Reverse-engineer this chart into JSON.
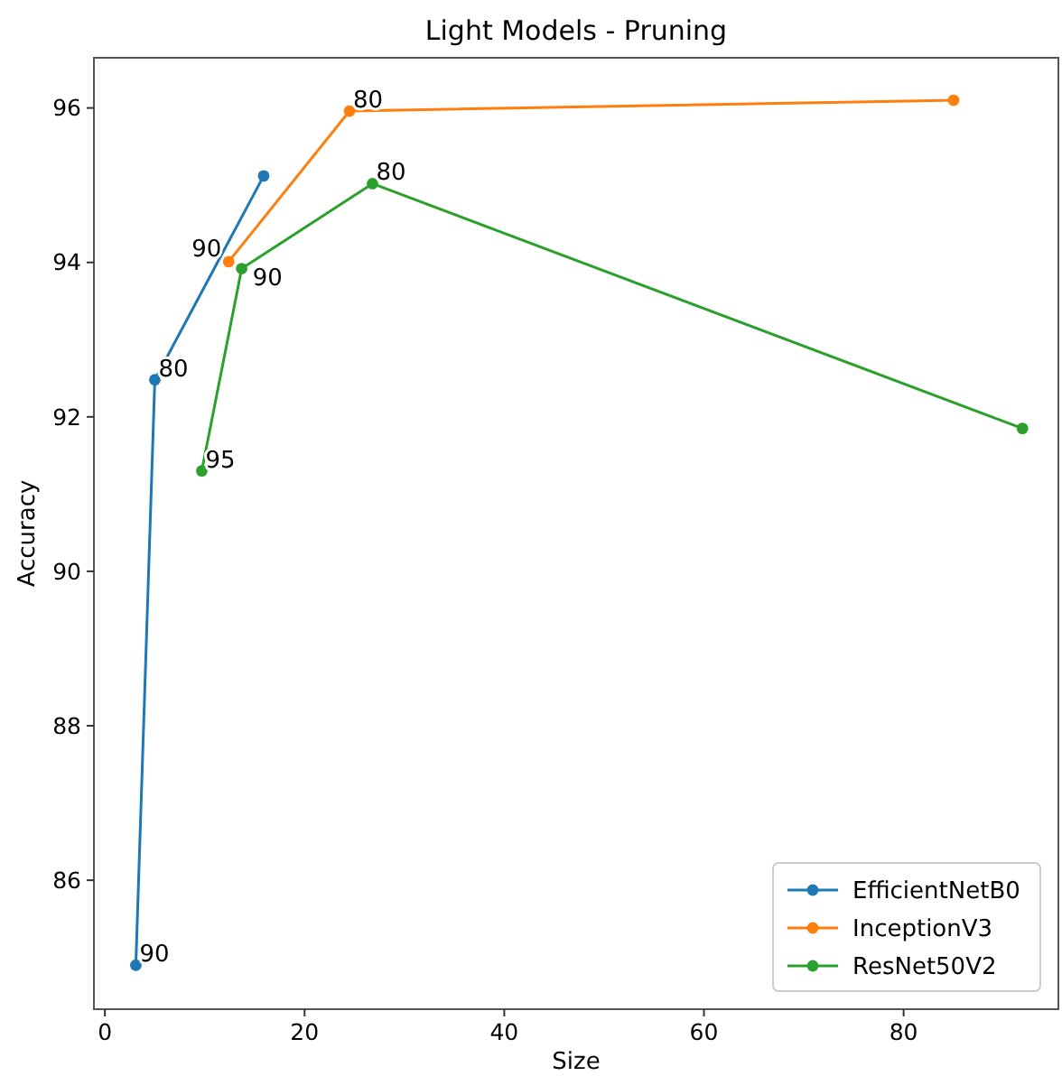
{
  "chart_data": {
    "type": "line",
    "title": "Light Models - Pruning",
    "xlabel": "Size",
    "ylabel": "Accuracy",
    "xlim": [
      -1.1,
      95.5
    ],
    "ylim": [
      84.33,
      96.65
    ],
    "xticks": [
      0,
      20,
      40,
      60,
      80
    ],
    "yticks": [
      86,
      88,
      90,
      92,
      94,
      96
    ],
    "series": [
      {
        "name": "EfficientNetB0",
        "color": "#1f77b4",
        "x": [
          3.1,
          5.0,
          15.9
        ],
        "values": [
          84.9,
          92.48,
          95.12
        ]
      },
      {
        "name": "InceptionV3",
        "color": "#ff7f0e",
        "x": [
          12.4,
          24.5,
          85.0
        ],
        "values": [
          94.01,
          95.96,
          96.1
        ]
      },
      {
        "name": "ResNet50V2",
        "color": "#2ca02c",
        "x": [
          9.7,
          13.7,
          26.8,
          91.9
        ],
        "values": [
          91.3,
          93.92,
          95.02,
          91.85
        ]
      }
    ],
    "annotations": [
      {
        "text": "90",
        "x": 3.1,
        "y": 84.9
      },
      {
        "text": "80",
        "x": 5.0,
        "y": 92.48
      },
      {
        "text": "90",
        "x": 12.4,
        "y": 94.01
      },
      {
        "text": "80",
        "x": 24.5,
        "y": 95.96
      },
      {
        "text": "95",
        "x": 9.7,
        "y": 91.3
      },
      {
        "text": "90",
        "x": 13.7,
        "y": 93.92
      },
      {
        "text": "80",
        "x": 26.8,
        "y": 95.02
      }
    ],
    "legend": "bottom right",
    "marker": "circle",
    "line_style": "solid",
    "grid": false
  }
}
